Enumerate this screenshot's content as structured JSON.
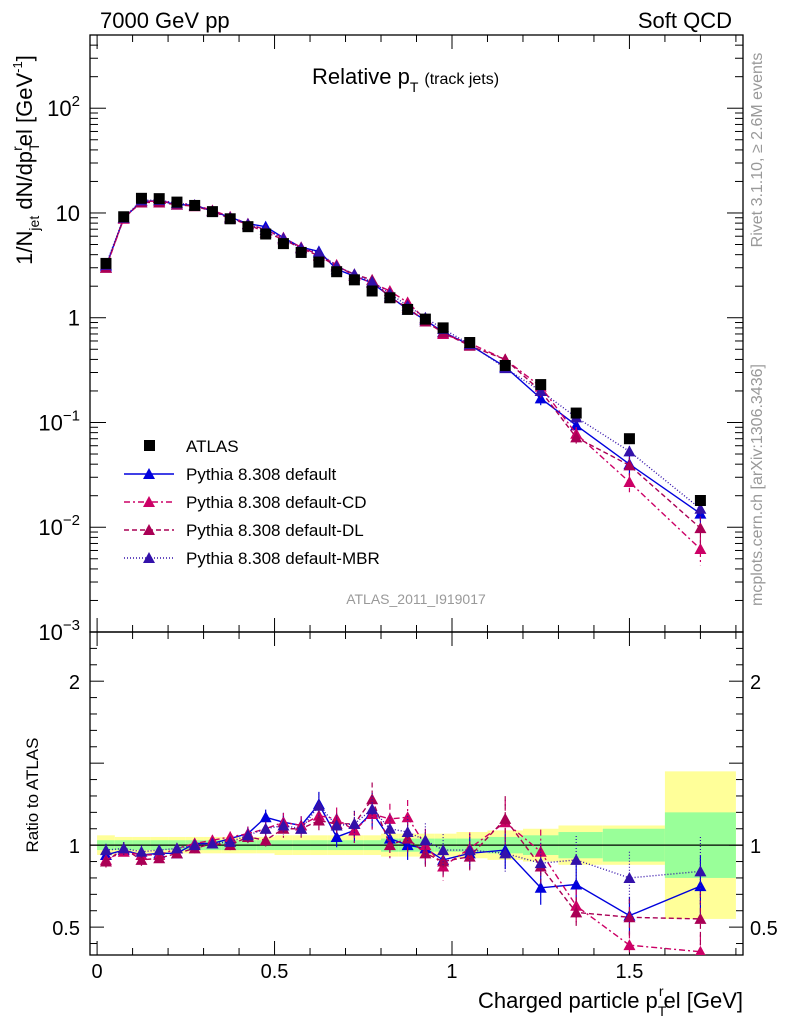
{
  "header": {
    "left": "7000 GeV pp",
    "right": "Soft QCD"
  },
  "side_labels": {
    "rivet": "Rivet 3.1.10, ≥ 2.6M events",
    "mcplots": "mcplots.cern.ch [arXiv:1306.3436]"
  },
  "chart_data": {
    "type": "scatter",
    "title": "Relative p_T (track jets)",
    "title_main": "Relative p",
    "title_sub": "T",
    "title_note": "(track jets)",
    "analysis_id": "ATLAS_2011_I919017",
    "xlabel": "Charged particle p_T^rel [GeV]",
    "xlabel_main": "Charged particle p",
    "xlabel_sub": "T",
    "xlabel_sup": "r",
    "xlabel_tail": "el [GeV]",
    "ylabel": "1/N_jet dN/dp_T^rel [GeV^-1]",
    "ylabel_parts": {
      "a": "1/N",
      "b": "jet",
      "c": " dN/dp",
      "d": "T",
      "e": "r",
      "f": "el [GeV",
      "g": "-1",
      "h": "]"
    },
    "ratio_ylabel": "Ratio to ATLAS",
    "xlim": [
      -0.02,
      1.82
    ],
    "ylim": [
      0.001,
      500
    ],
    "ylog": true,
    "ratio_ylim": [
      0.33,
      2.3
    ],
    "x_ticks": [
      "0",
      "0.5",
      "1",
      "1.5"
    ],
    "x_tick_values": [
      0,
      0.5,
      1,
      1.5
    ],
    "y_ticks": [
      {
        "value": 0.001,
        "base": "10",
        "exp": "−3"
      },
      {
        "value": 0.01,
        "base": "10",
        "exp": "−2"
      },
      {
        "value": 0.1,
        "base": "10",
        "exp": "−1"
      },
      {
        "value": 1,
        "base": "1",
        "exp": ""
      },
      {
        "value": 10,
        "base": "10",
        "exp": ""
      },
      {
        "value": 100,
        "base": "10",
        "exp": "2"
      }
    ],
    "ratio_ticks": [
      "0.5",
      "1",
      "2"
    ],
    "ratio_tick_values": [
      0.5,
      1,
      2
    ],
    "legend_position": "bottom-left",
    "x": [
      0.025,
      0.075,
      0.125,
      0.175,
      0.225,
      0.275,
      0.325,
      0.375,
      0.425,
      0.475,
      0.525,
      0.575,
      0.625,
      0.675,
      0.725,
      0.775,
      0.825,
      0.875,
      0.925,
      0.975,
      1.05,
      1.15,
      1.25,
      1.35,
      1.5,
      1.7
    ],
    "data": {
      "name": "ATLAS",
      "values": [
        3.3,
        9.2,
        13.8,
        13.7,
        12.7,
        11.8,
        10.3,
        8.8,
        7.4,
        6.3,
        5.1,
        4.2,
        3.4,
        2.75,
        2.3,
        1.8,
        1.55,
        1.2,
        0.97,
        0.8,
        0.58,
        0.35,
        0.23,
        0.123,
        0.07,
        0.018
      ],
      "band_green": [
        0.03,
        0.03,
        0.03,
        0.03,
        0.03,
        0.03,
        0.03,
        0.03,
        0.03,
        0.03,
        0.03,
        0.03,
        0.03,
        0.03,
        0.03,
        0.03,
        0.04,
        0.04,
        0.04,
        0.04,
        0.04,
        0.05,
        0.06,
        0.08,
        0.1,
        0.2
      ],
      "band_yellow": [
        0.06,
        0.05,
        0.05,
        0.05,
        0.05,
        0.05,
        0.05,
        0.05,
        0.05,
        0.05,
        0.06,
        0.06,
        0.06,
        0.06,
        0.06,
        0.06,
        0.07,
        0.07,
        0.07,
        0.07,
        0.08,
        0.09,
        0.1,
        0.12,
        0.12,
        0.45
      ]
    },
    "series": [
      {
        "name": "Pythia 8.308 default",
        "color": "#0000dd",
        "dash": "",
        "values": [
          3.1,
          8.9,
          12.9,
          13.1,
          12.0,
          11.9,
          10.4,
          9.1,
          7.9,
          7.4,
          5.8,
          4.7,
          4.3,
          2.9,
          2.5,
          2.15,
          1.6,
          1.2,
          0.95,
          0.73,
          0.55,
          0.34,
          0.17,
          0.094,
          0.04,
          0.0135
        ],
        "ratio": [
          0.94,
          0.97,
          0.94,
          0.95,
          0.95,
          1.01,
          1.01,
          1.04,
          1.07,
          1.17,
          1.14,
          1.12,
          1.25,
          1.05,
          1.09,
          1.2,
          1.04,
          1.0,
          0.98,
          0.91,
          0.95,
          0.97,
          0.74,
          0.76,
          0.57,
          0.75
        ],
        "err": [
          0.04,
          0.04,
          0.04,
          0.03,
          0.03,
          0.03,
          0.03,
          0.03,
          0.04,
          0.04,
          0.05,
          0.05,
          0.06,
          0.06,
          0.07,
          0.08,
          0.08,
          0.09,
          0.1,
          0.1,
          0.1,
          0.12,
          0.14,
          0.16,
          0.2,
          0.25
        ]
      },
      {
        "name": "Pythia 8.308 default-CD",
        "color": "#cc0066",
        "dash": "6,3,2,3",
        "values": [
          3.0,
          8.8,
          13.0,
          12.9,
          12.5,
          11.9,
          10.6,
          9.2,
          7.9,
          6.9,
          5.8,
          4.7,
          4.0,
          3.2,
          2.5,
          2.15,
          1.8,
          1.4,
          0.97,
          0.7,
          0.57,
          0.4,
          0.22,
          0.078,
          0.027,
          0.0062
        ],
        "ratio": [
          0.91,
          0.96,
          0.94,
          0.94,
          0.98,
          1.01,
          1.03,
          1.05,
          1.07,
          1.1,
          1.14,
          1.12,
          1.18,
          1.16,
          1.09,
          1.19,
          1.16,
          1.17,
          1.0,
          0.87,
          0.98,
          1.14,
          0.96,
          0.63,
          0.39,
          0.35
        ],
        "err": [
          0.04,
          0.04,
          0.04,
          0.03,
          0.03,
          0.03,
          0.03,
          0.03,
          0.04,
          0.04,
          0.05,
          0.05,
          0.06,
          0.06,
          0.07,
          0.08,
          0.08,
          0.09,
          0.1,
          0.1,
          0.1,
          0.12,
          0.14,
          0.16,
          0.2,
          0.3
        ]
      },
      {
        "name": "Pythia 8.308 default-DL",
        "color": "#aa0055",
        "dash": "5,3",
        "values": [
          3.0,
          9.0,
          12.6,
          12.6,
          12.0,
          11.6,
          10.4,
          8.8,
          7.8,
          6.5,
          5.6,
          4.6,
          3.9,
          3.1,
          2.6,
          2.3,
          1.55,
          1.25,
          0.92,
          0.72,
          0.54,
          0.4,
          0.2,
          0.072,
          0.039,
          0.0098
        ],
        "ratio": [
          0.9,
          0.98,
          0.91,
          0.92,
          0.95,
          0.98,
          1.01,
          1.0,
          1.05,
          1.03,
          1.1,
          1.1,
          1.15,
          1.13,
          1.13,
          1.28,
          1.0,
          1.04,
          0.95,
          0.9,
          0.93,
          1.16,
          0.87,
          0.59,
          0.56,
          0.55
        ],
        "err": [
          0.04,
          0.04,
          0.04,
          0.03,
          0.03,
          0.03,
          0.03,
          0.03,
          0.04,
          0.04,
          0.05,
          0.05,
          0.06,
          0.06,
          0.07,
          0.08,
          0.08,
          0.09,
          0.1,
          0.1,
          0.1,
          0.12,
          0.14,
          0.16,
          0.2,
          0.3
        ]
      },
      {
        "name": "Pythia 8.308 default-MBR",
        "color": "#3311aa",
        "dash": "1,2",
        "values": [
          3.2,
          9.0,
          13.2,
          13.3,
          12.4,
          11.9,
          10.4,
          9.0,
          7.8,
          6.9,
          5.7,
          4.6,
          4.2,
          3.1,
          2.6,
          2.2,
          1.7,
          1.3,
          1.0,
          0.78,
          0.56,
          0.33,
          0.2,
          0.112,
          0.053,
          0.015
        ],
        "ratio": [
          0.97,
          0.98,
          0.96,
          0.97,
          0.98,
          1.0,
          1.01,
          1.02,
          1.06,
          1.1,
          1.12,
          1.1,
          1.24,
          1.12,
          1.13,
          1.22,
          1.1,
          1.08,
          1.03,
          0.97,
          0.97,
          0.95,
          0.89,
          0.91,
          0.8,
          0.84
        ],
        "err": [
          0.04,
          0.04,
          0.04,
          0.03,
          0.03,
          0.03,
          0.03,
          0.03,
          0.04,
          0.04,
          0.05,
          0.05,
          0.06,
          0.06,
          0.07,
          0.08,
          0.08,
          0.09,
          0.1,
          0.1,
          0.1,
          0.12,
          0.14,
          0.16,
          0.2,
          0.25
        ]
      }
    ]
  }
}
